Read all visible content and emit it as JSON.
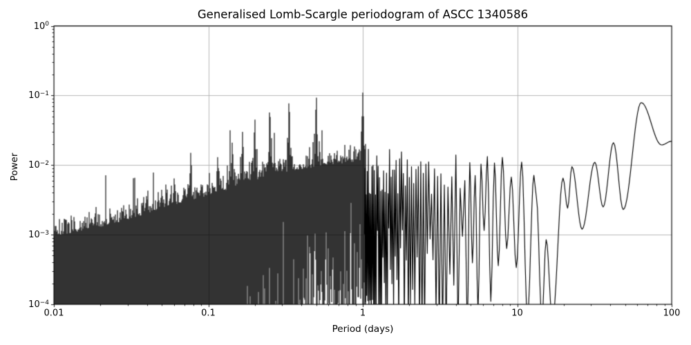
{
  "figure": {
    "title": "Generalised Lomb-Scargle periodogram of ASCC 1340586",
    "xlabel": "Period (days)",
    "ylabel": "Power"
  },
  "chart_data": {
    "type": "line",
    "title": "Generalised Lomb-Scargle periodogram of ASCC 1340586",
    "xlabel": "Period (days)",
    "ylabel": "Power",
    "xscale": "log",
    "yscale": "log",
    "xlim": [
      0.01,
      100
    ],
    "ylim": [
      0.0001,
      1
    ],
    "grid": true,
    "grid_color": "#b0b0b0",
    "line_color": "#000000",
    "background_color": "#ffffff",
    "x_ticks": [
      {
        "value": 0.01,
        "label": "0.01"
      },
      {
        "value": 0.1,
        "label": "0.1"
      },
      {
        "value": 1,
        "label": "1"
      },
      {
        "value": 10,
        "label": "10"
      },
      {
        "value": 100,
        "label": "100"
      }
    ],
    "y_ticks": [
      {
        "value": 1,
        "base": "10",
        "exp": "0"
      },
      {
        "value": 0.1,
        "base": "10",
        "exp": "−1"
      },
      {
        "value": 0.01,
        "base": "10",
        "exp": "−2"
      },
      {
        "value": 0.001,
        "base": "10",
        "exp": "−3"
      },
      {
        "value": 0.0001,
        "base": "10",
        "exp": "−4"
      }
    ],
    "highest_peak": {
      "period_days": 1.0,
      "power": 0.11
    },
    "alias_peaks": [
      {
        "period_days": 1.0,
        "power": 0.11
      },
      {
        "period_days": 0.5,
        "power": 0.093
      },
      {
        "period_days": 0.3333,
        "power": 0.077
      },
      {
        "period_days": 0.25,
        "power": 0.057
      },
      {
        "period_days": 0.2,
        "power": 0.045
      },
      {
        "period_days": 0.1667,
        "power": 0.03
      },
      {
        "period_days": 0.1429,
        "power": 0.021
      },
      {
        "period_days": 0.115,
        "power": 0.013
      },
      {
        "period_days": 0.077,
        "power": 0.015
      }
    ],
    "noise_envelope_log10": [
      [
        -2.0,
        -3.02
      ],
      [
        -1.7,
        -2.9
      ],
      [
        -1.4,
        -2.7
      ],
      [
        -1.15,
        -2.52
      ],
      [
        -1.0,
        -2.44
      ],
      [
        -0.8,
        -2.3
      ],
      [
        -0.6,
        -2.14
      ],
      [
        -0.4,
        -2.06
      ],
      [
        -0.2,
        -2.0
      ],
      [
        0.0,
        -1.93
      ],
      [
        0.15,
        -1.98
      ]
    ],
    "dense_region_period_range": [
      0.01,
      1.05
    ],
    "oscillatory_region_period_range": [
      1.03,
      13.0
    ],
    "window_ripple_spacing_cpd": 0.0156,
    "tail_points": [
      [
        13.3,
        0.0035
      ],
      [
        14.45,
        6e-05
      ],
      [
        15.4,
        0.00085
      ],
      [
        16.9,
        6e-05
      ],
      [
        19.8,
        0.0065
      ],
      [
        21.2,
        0.0024
      ],
      [
        22.6,
        0.0095
      ],
      [
        26.3,
        0.0012
      ],
      [
        31.8,
        0.011
      ],
      [
        36.0,
        0.0025
      ],
      [
        42.0,
        0.021
      ],
      [
        48.6,
        0.0023
      ],
      [
        63.5,
        0.079
      ],
      [
        86.0,
        0.0195
      ],
      [
        100.0,
        0.022
      ]
    ],
    "seed": 7
  }
}
